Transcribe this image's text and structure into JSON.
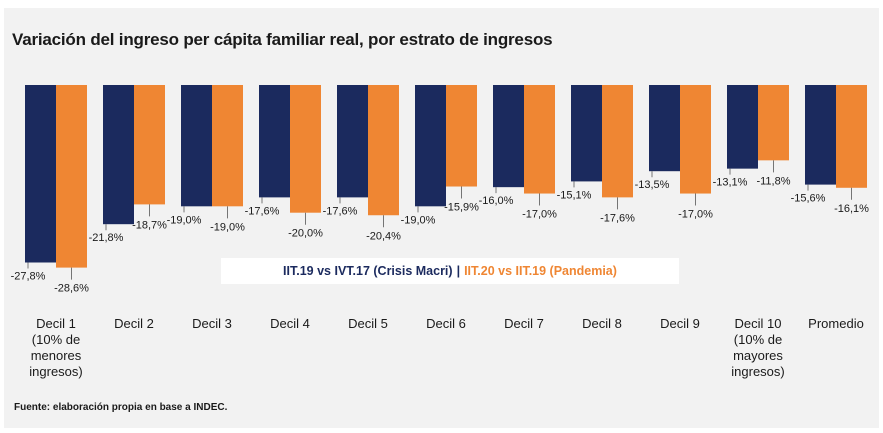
{
  "chart_data": {
    "type": "bar",
    "title": "Variación del ingreso per cápita familiar real, por estrato de ingresos",
    "categories": [
      [
        "Decil 1",
        "(10% de",
        "menores",
        "ingresos)"
      ],
      [
        "Decil 2"
      ],
      [
        "Decil 3"
      ],
      [
        "Decil 4"
      ],
      [
        "Decil 5"
      ],
      [
        "Decil 6"
      ],
      [
        "Decil 7"
      ],
      [
        "Decil 8"
      ],
      [
        "Decil 9"
      ],
      [
        "Decil 10",
        "(10% de",
        "mayores",
        "ingresos)"
      ],
      [
        "Promedio"
      ]
    ],
    "series": [
      {
        "name": "IIT.19 vs IVT.17 (Crisis Macri)",
        "color": "#1b2a5e",
        "values": [
          -27.8,
          -21.8,
          -19.0,
          -17.6,
          -17.6,
          -19.0,
          -16.0,
          -15.1,
          -13.5,
          -13.1,
          -15.6
        ],
        "labels": [
          "-27,8%",
          "-21,8%",
          "-19,0%",
          "-17,6%",
          "-17,6%",
          "-19,0%",
          "-16,0%",
          "-15,1%",
          "-13,5%",
          "-13,1%",
          "-15,6%"
        ]
      },
      {
        "name": "IIT.20 vs IIT.19 (Pandemia)",
        "color": "#ef8633",
        "values": [
          -28.6,
          -18.7,
          -19.0,
          -20.0,
          -20.4,
          -15.9,
          -17.0,
          -17.6,
          -17.0,
          -11.8,
          -16.1
        ],
        "labels": [
          "-28,6%",
          "-18,7%",
          "-19,0%",
          "-20,0%",
          "-20,4%",
          "-15,9%",
          "-17,0%",
          "-17,6%",
          "-17,0%",
          "-11,8%",
          "-16,1%"
        ]
      }
    ],
    "legend_separator": "|",
    "legend_position": "inside-center",
    "ylim": [
      -30,
      0
    ],
    "grid": false
  },
  "source_text": "Fuente: elaboración propia en base a INDEC."
}
